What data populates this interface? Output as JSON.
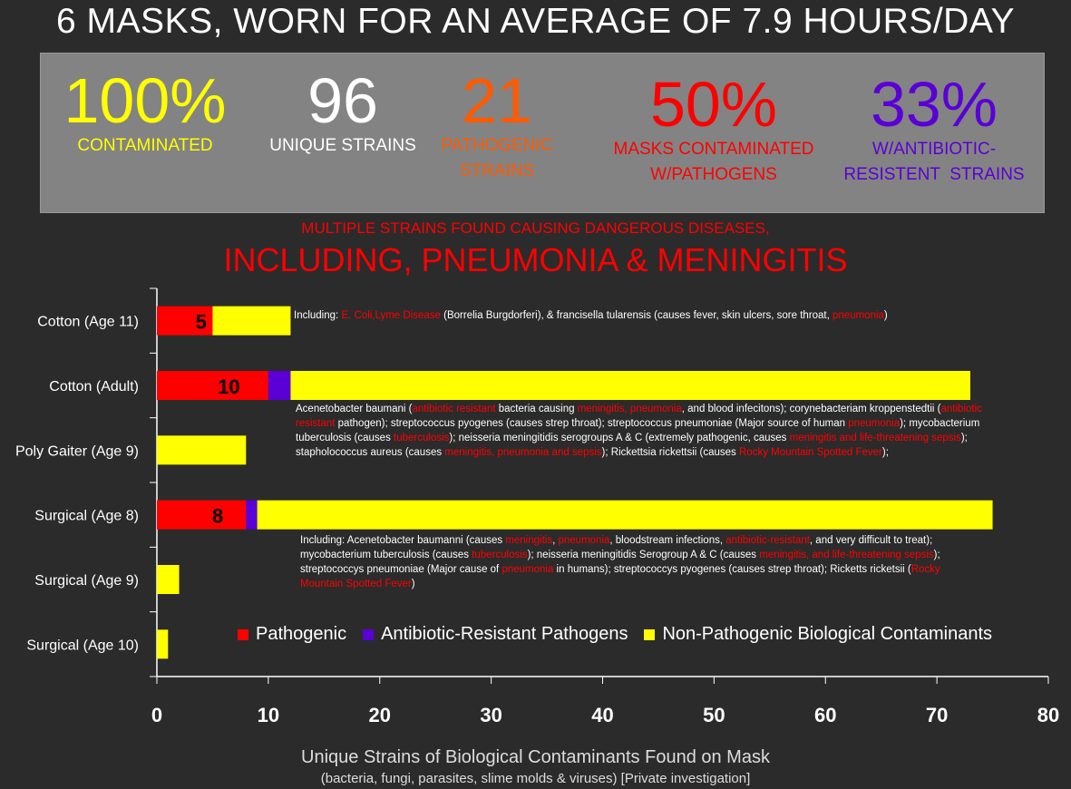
{
  "header": {
    "title": "6 MASKS, WORN FOR AN AVERAGE OF 7.9 HOURS/DAY",
    "subtitle_small": "MULTIPLE STRAINS FOUND CAUSING DANGEROUS DISEASES,",
    "subtitle_large": "INCLUDING, PNEUMONIA & MENINGITIS"
  },
  "stats": [
    {
      "value": "100%",
      "label1": "CONTAMINATED",
      "label2": "",
      "color": "#ffff00"
    },
    {
      "value": "96",
      "label1": "UNIQUE STRAINS",
      "label2": "",
      "color": "#ffffff"
    },
    {
      "value": "21",
      "label1": "PATHOGENIC",
      "label2": "STRAINS",
      "color": "#ff5a00"
    },
    {
      "value": "50%",
      "label1": "MASKS CONTAMINATED",
      "label2": "W/PATHOGENS",
      "color": "#ff0000"
    },
    {
      "value": "33%",
      "label1": "W/ANTIBIOTIC-",
      "label2": "RESISTENT  STRAINS",
      "color": "#5a00d6"
    }
  ],
  "colors": {
    "pathogenic": "#ff0000",
    "resistant": "#5a00d6",
    "nonpathogenic": "#ffff00"
  },
  "notes": {
    "cotton11": [
      {
        "t": "Including: ",
        "red": false
      },
      {
        "t": "E. Coli,Lyme Disease",
        "red": true
      },
      {
        "t": " (Borrelia Burgdorferi), & francisella tularensis (causes fever, skin ulcers, sore throat, ",
        "red": false
      },
      {
        "t": "pneumonia",
        "red": true
      },
      {
        "t": ")",
        "red": false
      }
    ],
    "cottonAdult": [
      {
        "t": "Acenetobacter baumani (",
        "red": false
      },
      {
        "t": "antibiotic resistant",
        "red": true
      },
      {
        "t": " bacteria causing ",
        "red": false
      },
      {
        "t": "meningitis, pneumonia",
        "red": true
      },
      {
        "t": ", and blood infecitons); corynebacteriam kroppenstedtii (",
        "red": false
      },
      {
        "t": "antibiotic resistant",
        "red": true
      },
      {
        "t": " pathogen); streptococcus pyogenes (causes strep throat); streptococcus pneumoniae (Major source of human ",
        "red": false
      },
      {
        "t": "pneumonia",
        "red": true
      },
      {
        "t": "); mycobacterium tuberculosis (causes ",
        "red": false
      },
      {
        "t": "tuberculosis",
        "red": true
      },
      {
        "t": "); neisseria meningitidis serogroups A & C (extremely pathogenic, causes ",
        "red": false
      },
      {
        "t": "meningitis and life-threatening sepsis",
        "red": true
      },
      {
        "t": "); stapholococcus aureus (causes ",
        "red": false
      },
      {
        "t": "meningitis, pneumonia and sepsis",
        "red": true
      },
      {
        "t": "); Rickettsia rickettsii (causes ",
        "red": false
      },
      {
        "t": "Rocky Mountain Spotted Fever",
        "red": true
      },
      {
        "t": ");",
        "red": false
      }
    ],
    "surgical8": [
      {
        "t": "Including: Acenetobacter baumanni (causes ",
        "red": false
      },
      {
        "t": "meningitis",
        "red": true
      },
      {
        "t": ", ",
        "red": false
      },
      {
        "t": "pneumonia",
        "red": true
      },
      {
        "t": ", bloodstream infections, ",
        "red": false
      },
      {
        "t": "antibiotic-resistant",
        "red": true
      },
      {
        "t": ", and very difficult to treat); mycobacterium tuberculosis (causes ",
        "red": false
      },
      {
        "t": "tuberculosis",
        "red": true
      },
      {
        "t": "); neisseria meningitidis Serogroup A & C (causes ",
        "red": false
      },
      {
        "t": "meningitis, and life-threatening sepsis",
        "red": true
      },
      {
        "t": "); streptococcys pneumoniae (Major cause of ",
        "red": false
      },
      {
        "t": "pneumonia",
        "red": true
      },
      {
        "t": " in humans); streptococcys pyogenes (causes strep throat); Ricketts ricketsii (",
        "red": false
      },
      {
        "t": "Rocky Mountain Spotted Fever",
        "red": true
      },
      {
        "t": ")",
        "red": false
      }
    ]
  },
  "chart_data": {
    "type": "bar",
    "orientation": "horizontal",
    "stacked": true,
    "categories": [
      "Cotton (Age 11)",
      "Cotton (Adult)",
      "Poly Gaiter (Age 9)",
      "Surgical (Age 8)",
      "Surgical (Age 9)",
      "Surgical (Age 10)"
    ],
    "series": [
      {
        "name": "Pathogenic",
        "color": "#ff0000",
        "values": [
          5,
          10,
          0,
          8,
          0,
          0
        ]
      },
      {
        "name": "Antibiotic-Resistant Pathogens",
        "color": "#5a00d6",
        "values": [
          0,
          2,
          0,
          1,
          0,
          0
        ]
      },
      {
        "name": "Non-Pathogenic Biological Contaminants",
        "color": "#ffff00",
        "values": [
          7,
          61,
          8,
          66,
          2,
          1
        ]
      }
    ],
    "data_labels": [
      "5",
      "10",
      "",
      "8",
      "",
      ""
    ],
    "xlim": [
      0,
      80
    ],
    "xticks": [
      "0",
      "10",
      "20",
      "30",
      "40",
      "50",
      "60",
      "70",
      "80"
    ],
    "xlabel": "Unique Strains of Biological Contaminants Found on Mask",
    "xlabel_sub": "(bacteria, fungi, parasites, slime molds & viruses) [Private investigation]",
    "legend_position": "inside-bottom-right",
    "grid": false
  }
}
